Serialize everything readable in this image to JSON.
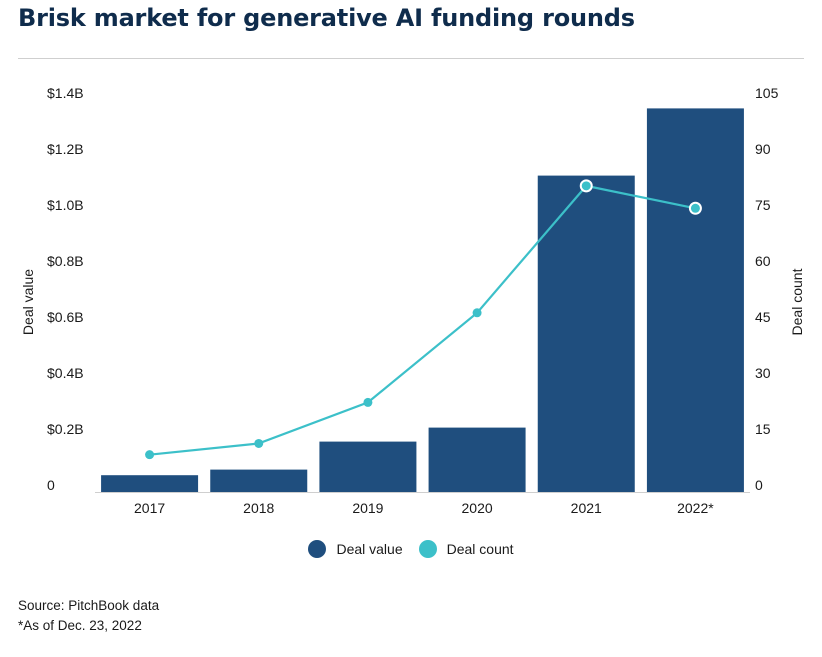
{
  "title": "Brisk market for generative AI funding rounds",
  "colors": {
    "bar": "#1f4e7e",
    "line": "#3cc0c9",
    "title": "#0f2c4c"
  },
  "chart_data": {
    "type": "bar+line",
    "categories": [
      "2017",
      "2018",
      "2019",
      "2020",
      "2021",
      "2022*"
    ],
    "series": [
      {
        "name": "Deal value",
        "type": "bar",
        "axis": "left",
        "values": [
          0.06,
          0.08,
          0.18,
          0.23,
          1.13,
          1.37
        ]
      },
      {
        "name": "Deal count",
        "type": "line",
        "axis": "right",
        "values": [
          10,
          13,
          24,
          48,
          82,
          76
        ]
      }
    ],
    "ylabel_left": "Deal value",
    "ylabel_right": "Deal count",
    "ylim_left": [
      0,
      1.4
    ],
    "ylim_right": [
      0,
      105
    ],
    "yticks_left": [
      "0",
      "$0.2B",
      "$0.4B",
      "$0.6B",
      "$0.8B",
      "$1.0B",
      "$1.2B",
      "$1.4B"
    ],
    "yticks_right": [
      "0",
      "15",
      "30",
      "45",
      "60",
      "75",
      "90",
      "105"
    ],
    "legend": "bottom-center",
    "grid": false
  },
  "footer": {
    "source": "Source: PitchBook data",
    "note": "*As of Dec. 23, 2022"
  }
}
